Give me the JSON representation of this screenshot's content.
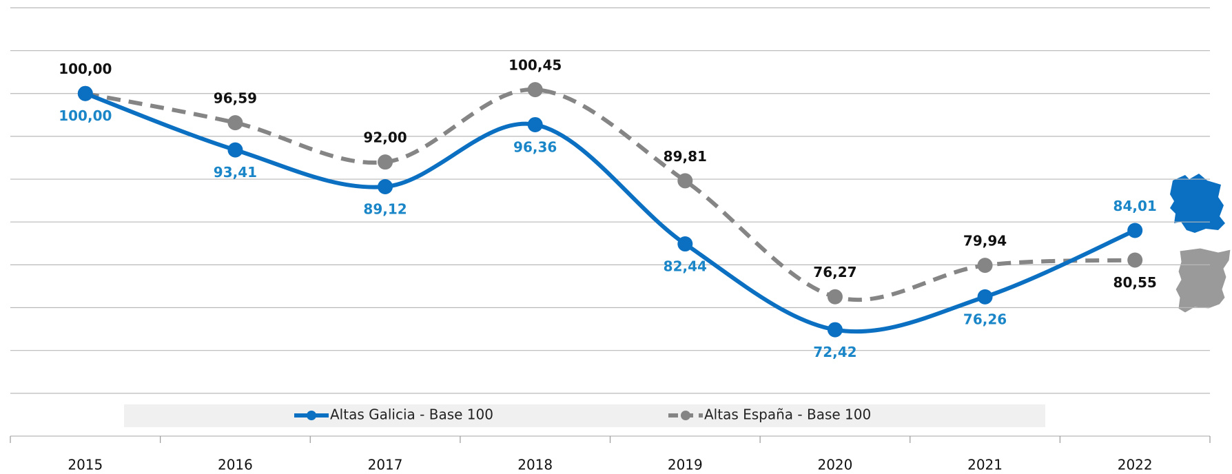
{
  "chart_data": {
    "type": "line",
    "categories": [
      "2015",
      "2016",
      "2017",
      "2018",
      "2019",
      "2020",
      "2021",
      "2022"
    ],
    "series": [
      {
        "name": "Altas Galicia - Base 100",
        "color": "#0b70c2",
        "label_color": "#1a86c8",
        "dashed": false,
        "values": [
          100.0,
          93.41,
          89.12,
          96.36,
          82.44,
          72.42,
          76.26,
          84.01
        ],
        "value_labels": [
          "100,00",
          "93,41",
          "89,12",
          "96,36",
          "82,44",
          "72,42",
          "76,26",
          "84,01"
        ]
      },
      {
        "name": "Altas España - Base 100",
        "color": "#858585",
        "label_color": "#111111",
        "dashed": true,
        "values": [
          100.0,
          96.59,
          92.0,
          100.45,
          89.81,
          76.27,
          79.94,
          80.55
        ],
        "value_labels": [
          "100,00",
          "96,59",
          "92,00",
          "100,45",
          "89,81",
          "76,27",
          "79,94",
          "80,55"
        ]
      }
    ],
    "ylim": [
      60,
      110
    ],
    "yticks": [
      60,
      65,
      70,
      75,
      80,
      85,
      90,
      95,
      100,
      105,
      110
    ],
    "grid": true,
    "legend": "bottom"
  }
}
